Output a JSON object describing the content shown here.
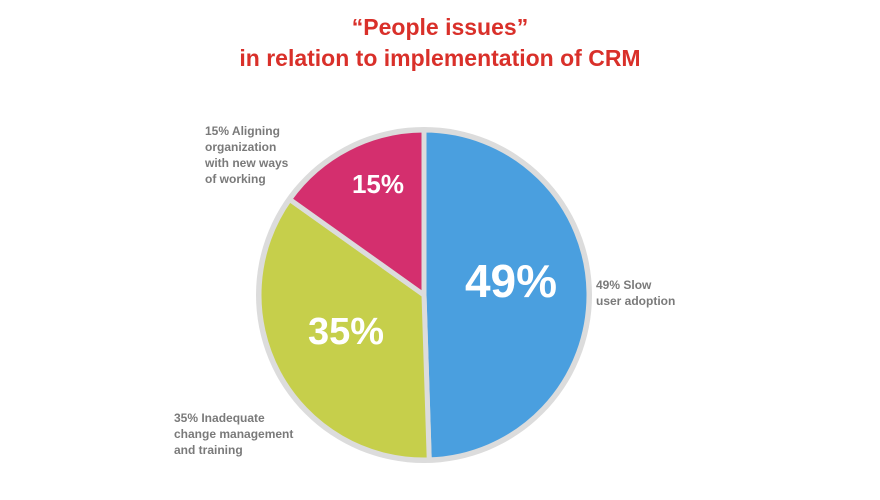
{
  "title": {
    "line1": "“People issues”",
    "line2": "in relation to implementation of CRM"
  },
  "chart_data": {
    "type": "pie",
    "title": "“People issues” in relation to implementation of CRM",
    "slices": [
      {
        "name": "Slow user adoption",
        "value": 49,
        "value_label": "49%",
        "callout": "49% Slow\nuser adoption",
        "color": "#4a9fdf"
      },
      {
        "name": "Inadequate change management and training",
        "value": 35,
        "value_label": "35%",
        "callout": "35% Inadequate\nchange management\nand training",
        "color": "#c6cf4b"
      },
      {
        "name": "Aligning organization with new ways of working",
        "value": 15,
        "value_label": "15%",
        "callout": "15% Aligning\norganization\nwith new ways\nof working",
        "color": "#d42f6e"
      }
    ],
    "start": "12 o'clock",
    "direction": "clockwise",
    "border_color": "#dcdcdc",
    "legend": "none (callout labels beside slices)"
  }
}
